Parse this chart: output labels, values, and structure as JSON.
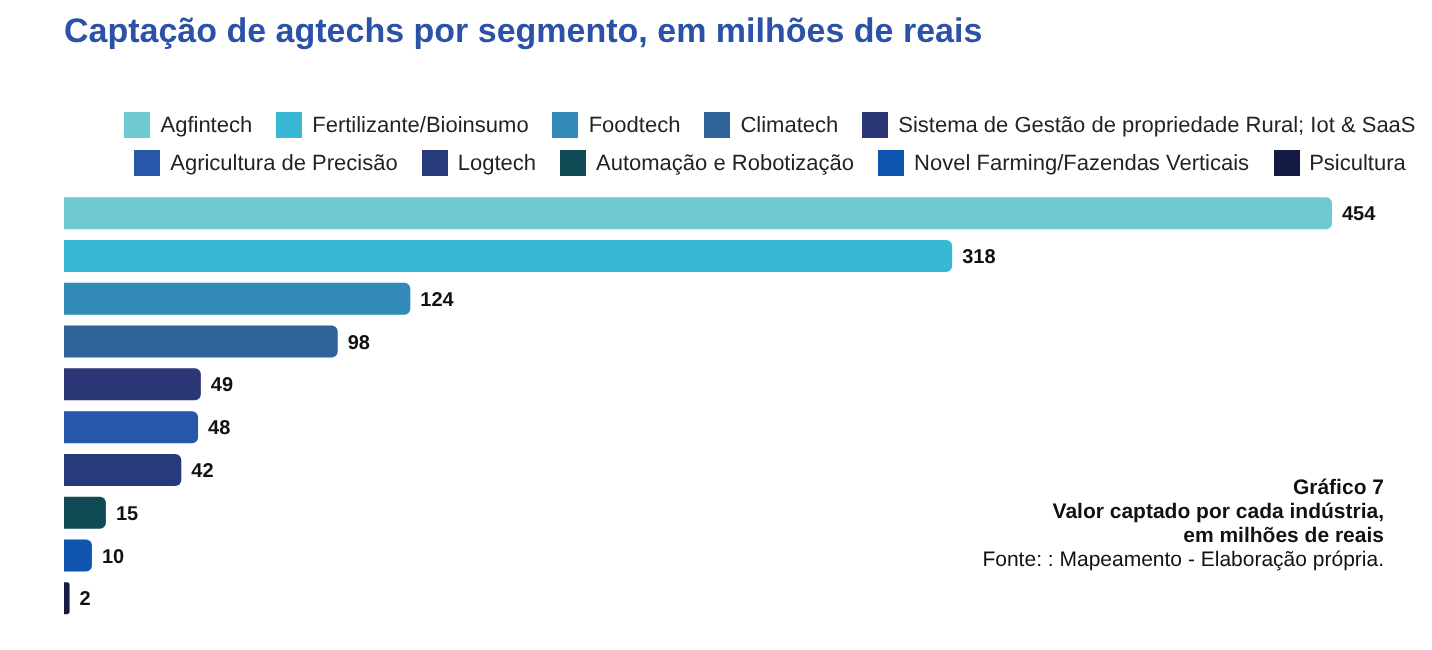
{
  "chart_data": {
    "type": "bar",
    "orientation": "horizontal",
    "stacked": true,
    "title": "Captação de agtechs por segmento, em milhões de reais",
    "categories": [
      null,
      null,
      null,
      null,
      null,
      null,
      null,
      null,
      null,
      null
    ],
    "series": [
      {
        "name": "Agfintech",
        "color": "#6fc9d3",
        "values": [
          454,
          null,
          null,
          null,
          null,
          null,
          null,
          null,
          null,
          null
        ]
      },
      {
        "name": "Fertilizante/Bioinsumo",
        "color": "#38b8d5",
        "values": [
          null,
          318,
          null,
          null,
          null,
          null,
          null,
          null,
          null,
          null
        ]
      },
      {
        "name": "Foodtech",
        "color": "#318ab8",
        "values": [
          null,
          null,
          124,
          null,
          null,
          null,
          null,
          null,
          null,
          null
        ]
      },
      {
        "name": "Climatech",
        "color": "#2e6299",
        "values": [
          null,
          null,
          null,
          98,
          null,
          null,
          null,
          null,
          null,
          null
        ]
      },
      {
        "name": "Sistema de Gestão de propriedade Rural; Iot & SaaS",
        "color": "#2c3775",
        "values": [
          null,
          null,
          null,
          null,
          49,
          null,
          null,
          null,
          null,
          null
        ]
      },
      {
        "name": "Agricultura de Precisão",
        "color": "#2657a8",
        "values": [
          null,
          null,
          null,
          null,
          null,
          48,
          null,
          null,
          null,
          null
        ]
      },
      {
        "name": "Logtech",
        "color": "#273b7b",
        "values": [
          null,
          null,
          null,
          null,
          null,
          null,
          42,
          null,
          null,
          null
        ]
      },
      {
        "name": "Automação e Robotização",
        "color": "#0f4a55",
        "values": [
          null,
          null,
          null,
          null,
          null,
          null,
          null,
          15,
          null,
          null
        ]
      },
      {
        "name": "Novel Farming/Fazendas Verticais",
        "color": "#0f55b0",
        "values": [
          null,
          null,
          null,
          null,
          null,
          null,
          null,
          null,
          10,
          null
        ]
      },
      {
        "name": "Psicultura",
        "color": "#151b45",
        "values": [
          null,
          null,
          null,
          null,
          null,
          null,
          null,
          null,
          null,
          2
        ]
      }
    ],
    "data_labels": true,
    "legend": "top",
    "tick_labels": false,
    "grid": false,
    "annotations": [
      "Gráfico 7",
      "Valor captado por cada indústria,",
      "em milhões de reais",
      "Fonte: : Mapeamento - Elaboração própria."
    ]
  }
}
